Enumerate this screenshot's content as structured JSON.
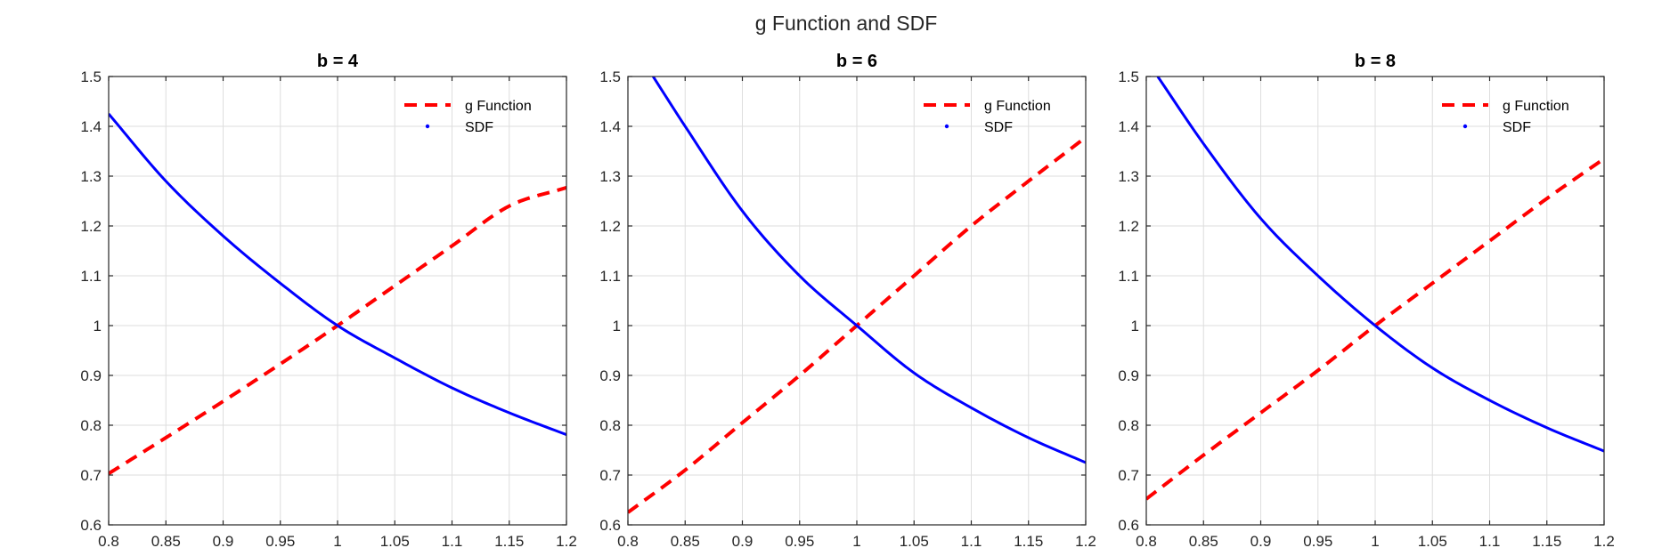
{
  "figure_title": "g Function and SDF",
  "chart_data": [
    {
      "type": "line",
      "title": "b = 4",
      "xlim": [
        0.8,
        1.2
      ],
      "ylim": [
        0.6,
        1.5
      ],
      "xticks": [
        0.8,
        0.85,
        0.9,
        0.95,
        1,
        1.05,
        1.1,
        1.15,
        1.2
      ],
      "yticks": [
        0.6,
        0.7,
        0.8,
        0.9,
        1,
        1.1,
        1.2,
        1.3,
        1.4,
        1.5
      ],
      "xtick_labels": [
        "0.8",
        "0.85",
        "0.9",
        "0.95",
        "1",
        "1.05",
        "1.1",
        "1.15",
        "1.2"
      ],
      "ytick_labels": [
        "0.6",
        "0.7",
        "0.8",
        "0.9",
        "1",
        "1.1",
        "1.2",
        "1.3",
        "1.4",
        "1.5"
      ],
      "grid": true,
      "legend_position": "top-right",
      "series": [
        {
          "name": "g Function",
          "style": "dashed",
          "color": "#ff0000",
          "x": [
            0.8,
            0.85,
            0.9,
            0.95,
            1.0,
            1.05,
            1.1,
            1.15,
            1.2
          ],
          "y": [
            0.703,
            0.775,
            0.848,
            0.923,
            1.0,
            1.08,
            1.16,
            1.24,
            1.277
          ]
        },
        {
          "name": "SDF",
          "style": "solid",
          "color": "#0000ff",
          "x": [
            0.8,
            0.85,
            0.9,
            0.95,
            1.0,
            1.05,
            1.1,
            1.15,
            1.2
          ],
          "y": [
            1.425,
            1.29,
            1.18,
            1.085,
            1.0,
            0.935,
            0.875,
            0.825,
            0.781
          ]
        }
      ]
    },
    {
      "type": "line",
      "title": "b = 6",
      "xlim": [
        0.8,
        1.2
      ],
      "ylim": [
        0.6,
        1.5
      ],
      "xticks": [
        0.8,
        0.85,
        0.9,
        0.95,
        1,
        1.05,
        1.1,
        1.15,
        1.2
      ],
      "yticks": [
        0.6,
        0.7,
        0.8,
        0.9,
        1,
        1.1,
        1.2,
        1.3,
        1.4,
        1.5
      ],
      "xtick_labels": [
        "0.8",
        "0.85",
        "0.9",
        "0.95",
        "1",
        "1.05",
        "1.1",
        "1.15",
        "1.2"
      ],
      "ytick_labels": [
        "0.6",
        "0.7",
        "0.8",
        "0.9",
        "1",
        "1.1",
        "1.2",
        "1.3",
        "1.4",
        "1.5"
      ],
      "grid": true,
      "legend_position": "top-right",
      "series": [
        {
          "name": "g Function",
          "style": "dashed",
          "color": "#ff0000",
          "x": [
            0.8,
            0.85,
            0.9,
            0.95,
            1.0,
            1.05,
            1.1,
            1.15,
            1.2
          ],
          "y": [
            0.625,
            0.71,
            0.805,
            0.9,
            1.0,
            1.1,
            1.2,
            1.29,
            1.378
          ]
        },
        {
          "name": "SDF",
          "style": "solid",
          "color": "#0000ff",
          "x": [
            0.822,
            0.85,
            0.9,
            0.95,
            1.0,
            1.05,
            1.1,
            1.15,
            1.2
          ],
          "y": [
            1.5,
            1.4,
            1.23,
            1.1,
            1.0,
            0.905,
            0.835,
            0.775,
            0.725
          ]
        }
      ]
    },
    {
      "type": "line",
      "title": "b = 8",
      "xlim": [
        0.8,
        1.2
      ],
      "ylim": [
        0.6,
        1.5
      ],
      "xticks": [
        0.8,
        0.85,
        0.9,
        0.95,
        1,
        1.05,
        1.1,
        1.15,
        1.2
      ],
      "yticks": [
        0.6,
        0.7,
        0.8,
        0.9,
        1,
        1.1,
        1.2,
        1.3,
        1.4,
        1.5
      ],
      "xtick_labels": [
        "0.8",
        "0.85",
        "0.9",
        "0.95",
        "1",
        "1.05",
        "1.1",
        "1.15",
        "1.2"
      ],
      "ytick_labels": [
        "0.6",
        "0.7",
        "0.8",
        "0.9",
        "1",
        "1.1",
        "1.2",
        "1.3",
        "1.4",
        "1.5"
      ],
      "grid": true,
      "legend_position": "top-right",
      "series": [
        {
          "name": "g Function",
          "style": "dashed",
          "color": "#ff0000",
          "x": [
            0.8,
            0.85,
            0.9,
            0.95,
            1.0,
            1.05,
            1.1,
            1.15,
            1.2
          ],
          "y": [
            0.652,
            0.74,
            0.825,
            0.91,
            1.0,
            1.085,
            1.17,
            1.255,
            1.335
          ]
        },
        {
          "name": "SDF",
          "style": "solid",
          "color": "#0000ff",
          "x": [
            0.81,
            0.85,
            0.9,
            0.95,
            1.0,
            1.05,
            1.1,
            1.15,
            1.2
          ],
          "y": [
            1.5,
            1.365,
            1.215,
            1.1,
            1.0,
            0.915,
            0.85,
            0.795,
            0.748
          ]
        }
      ]
    }
  ]
}
